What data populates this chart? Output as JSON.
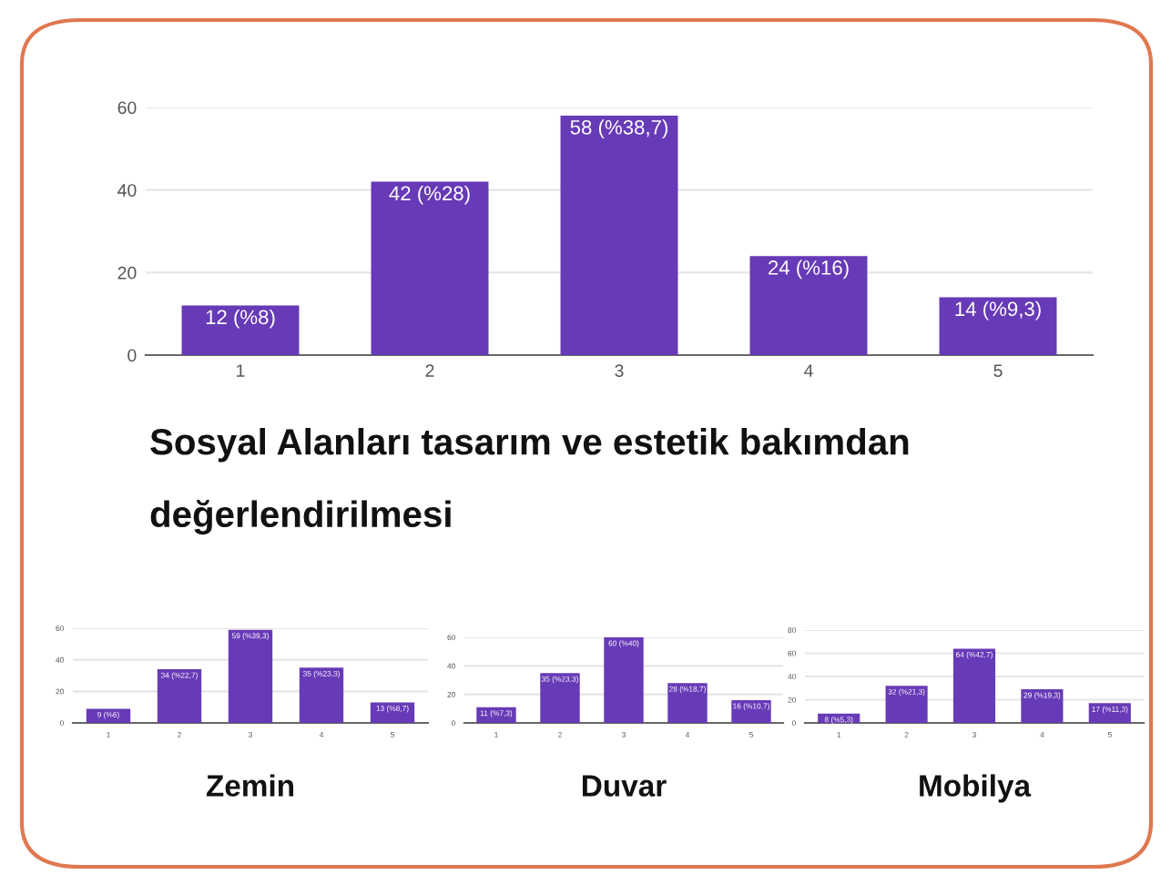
{
  "chart_data": [
    {
      "type": "bar",
      "categories": [
        "1",
        "2",
        "3",
        "4",
        "5"
      ],
      "values": [
        12,
        42,
        58,
        24,
        14
      ],
      "color": "#673ab7",
      "value_labels": [
        "12 (%8)",
        "42 (%28)",
        "58 (%38,7)",
        "24 (%16)",
        "14 (%9,3)"
      ],
      "ylim": [
        0,
        60
      ],
      "yticks": [
        0,
        20,
        40,
        60
      ],
      "grid": "y",
      "annotations": [
        "Sosyal Alanları tasarım ve estetik bakımdan değerlendirilmesi"
      ]
    },
    {
      "type": "bar",
      "xlabel": "Zemin",
      "categories": [
        "1",
        "2",
        "3",
        "4",
        "5"
      ],
      "values": [
        9,
        34,
        59,
        35,
        13
      ],
      "color": "#673ab7",
      "value_labels": [
        "9 (%6)",
        "34 (%22,7)",
        "59 (%39,3)",
        "35 (%23,3)",
        "13 (%8,7)"
      ],
      "ylim": [
        0,
        60
      ],
      "yticks": [
        0,
        20,
        40,
        60
      ],
      "grid": "y"
    },
    {
      "type": "bar",
      "xlabel": "Duvar",
      "categories": [
        "1",
        "2",
        "3",
        "4",
        "5"
      ],
      "values": [
        11,
        35,
        60,
        28,
        16
      ],
      "color": "#673ab7",
      "value_labels": [
        "11 (%7,3)",
        "35 (%23,3)",
        "60 (%40)",
        "28 (%18,7)",
        "16 (%10,7)"
      ],
      "ylim": [
        0,
        60
      ],
      "yticks": [
        0,
        20,
        40,
        60
      ],
      "grid": "y"
    },
    {
      "type": "bar",
      "xlabel": "Mobilya",
      "categories": [
        "1",
        "2",
        "3",
        "4",
        "5"
      ],
      "values": [
        8,
        32,
        64,
        29,
        17
      ],
      "color": "#673ab7",
      "value_labels": [
        "8 (%5,3)",
        "32 (%21,3)",
        "64 (%42,7)",
        "29 (%19,3)",
        "17 (%11,3)"
      ],
      "ylim": [
        0,
        80
      ],
      "yticks": [
        0,
        20,
        40,
        60,
        80
      ],
      "grid": "y"
    }
  ]
}
